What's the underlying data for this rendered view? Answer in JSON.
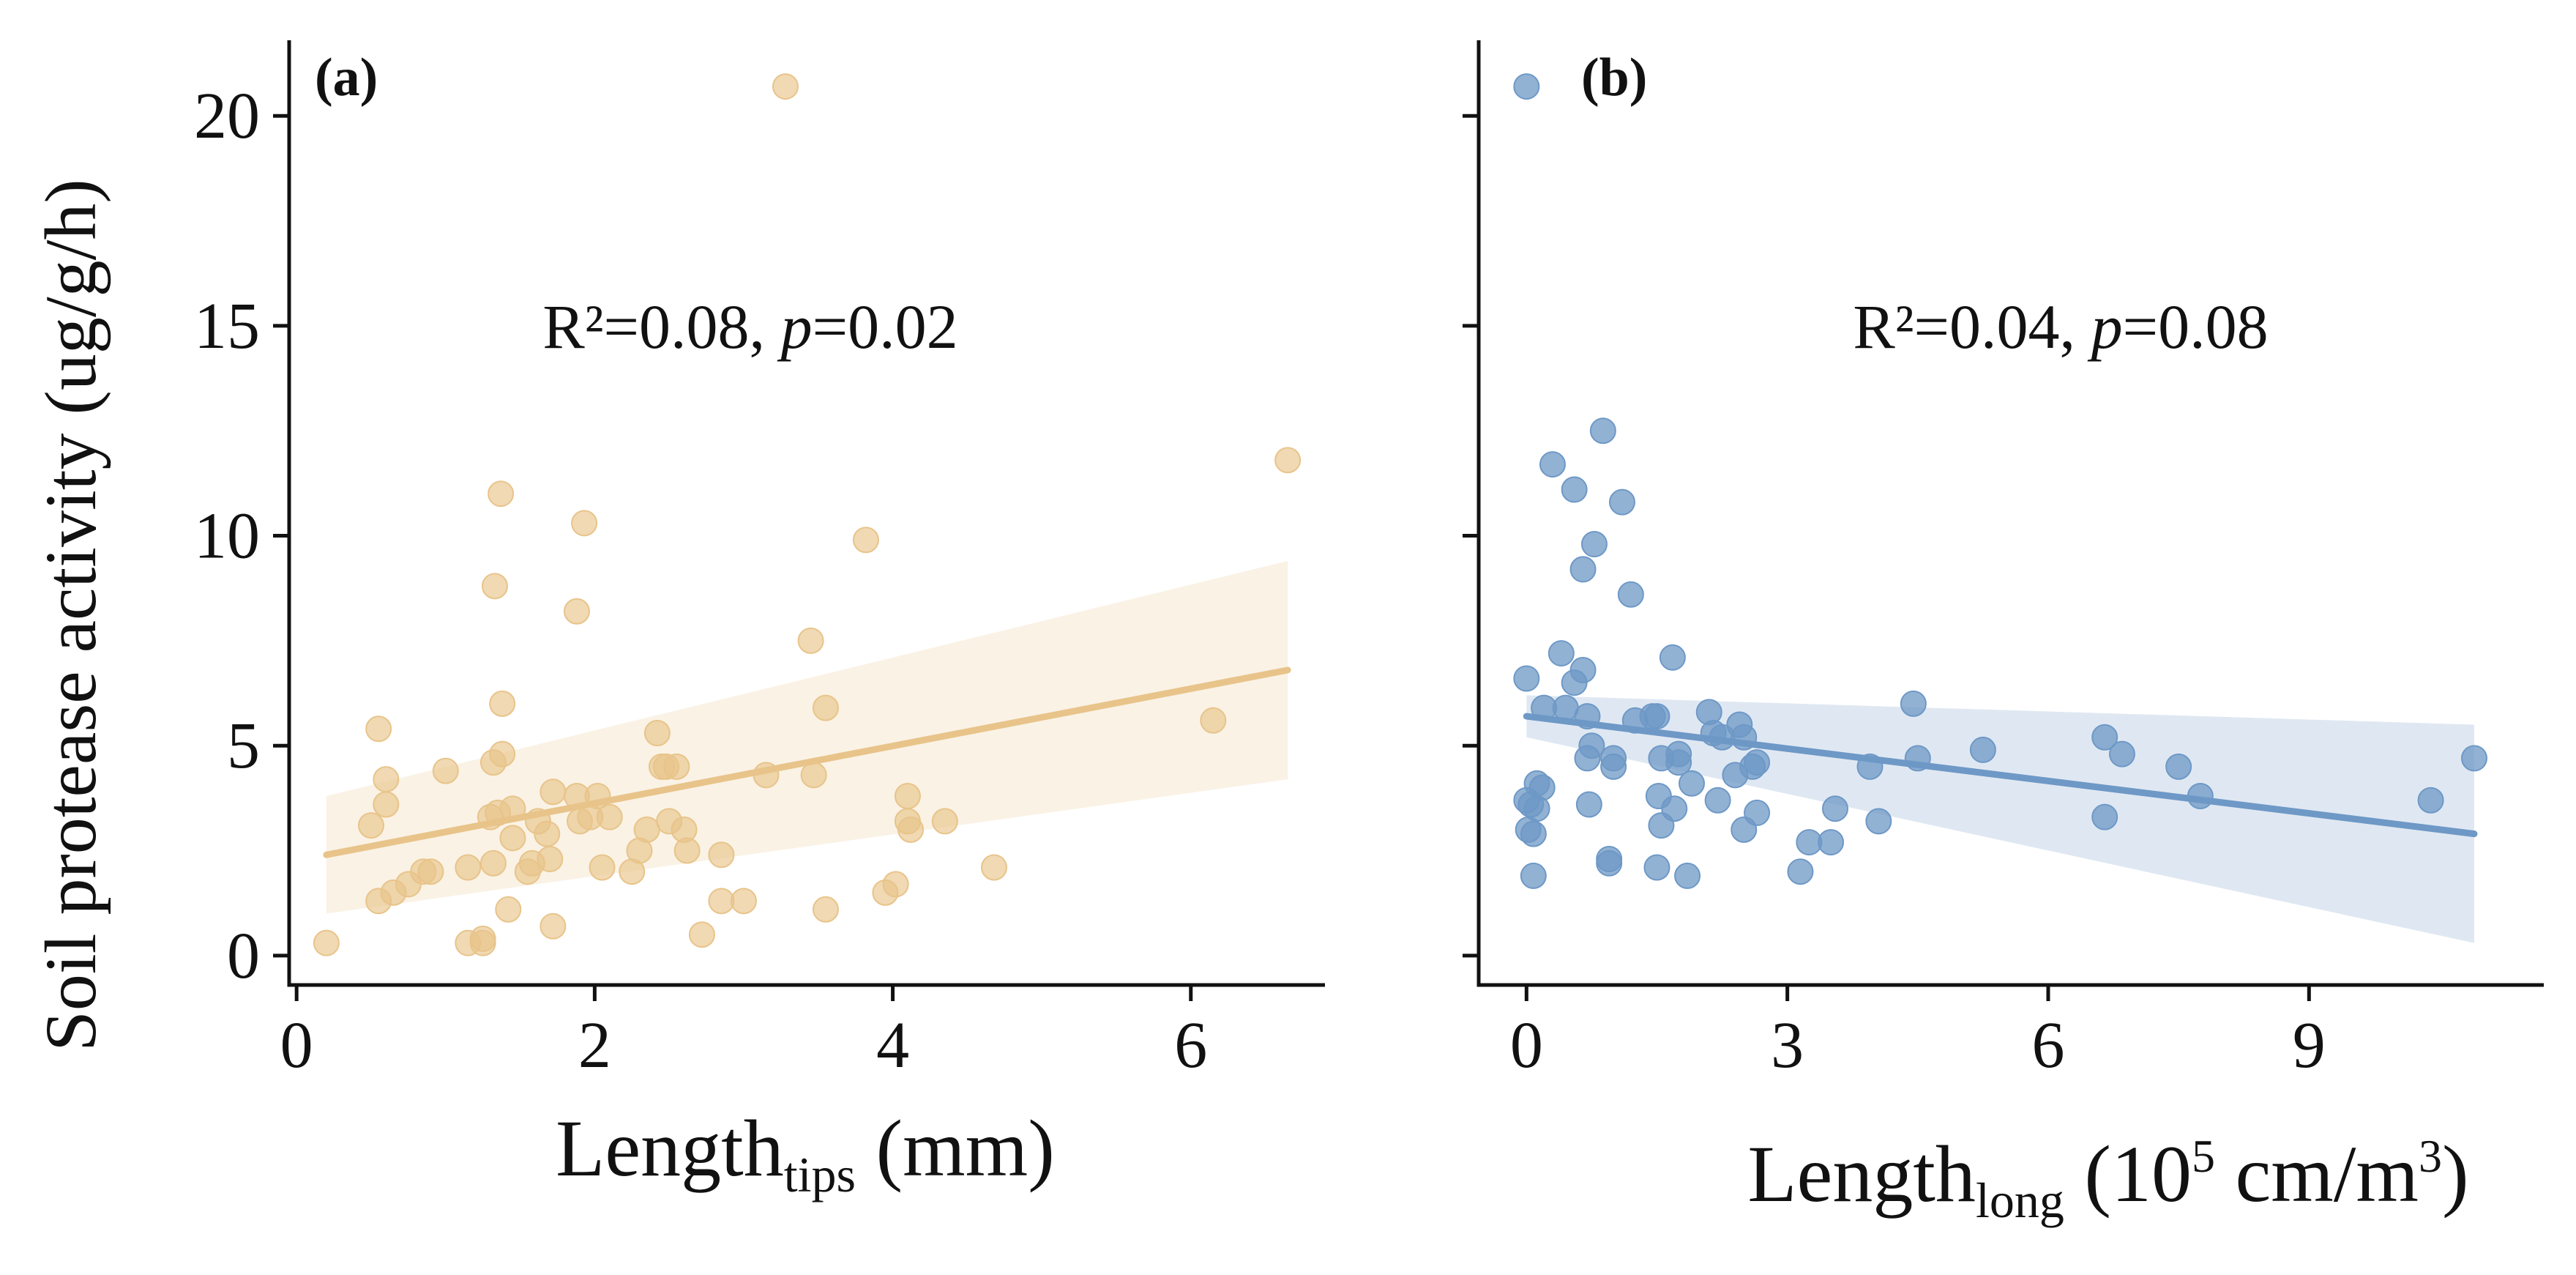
{
  "ylabel": "Soil protease activity (ug/g/h)",
  "chart_data": [
    {
      "type": "scatter",
      "panel_label": "(a)",
      "annotation": {
        "prefix": "R²=0.08, ",
        "p_symbol": "p",
        "suffix": "=0.02"
      },
      "xlabel": {
        "main": "Length",
        "subscript": "tips",
        "rest": " (mm)"
      },
      "ylabel": "Soil protease activity (ug/g/h)",
      "xlim": [
        -0.05,
        6.9
      ],
      "ylim": [
        -0.7,
        21.8
      ],
      "xticks": [
        0,
        2,
        4,
        6
      ],
      "yticks": [
        0,
        5,
        10,
        15,
        20
      ],
      "show_ytick_labels": true,
      "color": "#E8C48A",
      "regression": {
        "x_start": 0.2,
        "x_end": 6.65,
        "y_start": 2.4,
        "y_end": 6.8
      },
      "confidence_band": {
        "x": [
          0.2,
          6.65
        ],
        "upper": [
          3.8,
          9.4
        ],
        "lower": [
          1.0,
          4.2
        ]
      },
      "points": [
        [
          0.2,
          0.3
        ],
        [
          0.5,
          3.1
        ],
        [
          0.55,
          5.4
        ],
        [
          0.55,
          1.3
        ],
        [
          0.6,
          4.2
        ],
        [
          0.6,
          3.6
        ],
        [
          0.65,
          1.5
        ],
        [
          0.75,
          1.7
        ],
        [
          0.85,
          2.0
        ],
        [
          0.9,
          2.0
        ],
        [
          1.0,
          4.4
        ],
        [
          1.15,
          0.3
        ],
        [
          1.15,
          2.1
        ],
        [
          1.25,
          0.4
        ],
        [
          1.25,
          0.3
        ],
        [
          1.3,
          3.3
        ],
        [
          1.32,
          4.6
        ],
        [
          1.32,
          2.2
        ],
        [
          1.33,
          8.8
        ],
        [
          1.35,
          3.4
        ],
        [
          1.37,
          11.0
        ],
        [
          1.38,
          6.0
        ],
        [
          1.38,
          4.8
        ],
        [
          1.42,
          1.1
        ],
        [
          1.45,
          3.5
        ],
        [
          1.45,
          2.8
        ],
        [
          1.55,
          2.0
        ],
        [
          1.58,
          2.2
        ],
        [
          1.62,
          3.2
        ],
        [
          1.68,
          2.9
        ],
        [
          1.7,
          2.3
        ],
        [
          1.72,
          3.9
        ],
        [
          1.72,
          0.7
        ],
        [
          1.88,
          8.2
        ],
        [
          1.88,
          3.8
        ],
        [
          1.9,
          3.2
        ],
        [
          1.93,
          10.3
        ],
        [
          1.97,
          3.3
        ],
        [
          2.02,
          3.8
        ],
        [
          2.05,
          2.1
        ],
        [
          2.1,
          3.3
        ],
        [
          2.25,
          2.0
        ],
        [
          2.3,
          2.5
        ],
        [
          2.35,
          3.0
        ],
        [
          2.42,
          5.3
        ],
        [
          2.45,
          4.5
        ],
        [
          2.48,
          4.5
        ],
        [
          2.5,
          3.2
        ],
        [
          2.55,
          4.5
        ],
        [
          2.6,
          3.0
        ],
        [
          2.62,
          2.5
        ],
        [
          2.72,
          0.5
        ],
        [
          2.85,
          2.4
        ],
        [
          2.85,
          1.3
        ],
        [
          3.0,
          1.3
        ],
        [
          3.15,
          4.3
        ],
        [
          3.28,
          20.7
        ],
        [
          3.45,
          7.5
        ],
        [
          3.47,
          4.3
        ],
        [
          3.55,
          5.9
        ],
        [
          3.55,
          1.1
        ],
        [
          3.82,
          9.9
        ],
        [
          3.95,
          1.5
        ],
        [
          4.02,
          1.7
        ],
        [
          4.1,
          3.8
        ],
        [
          4.1,
          3.2
        ],
        [
          4.12,
          3.0
        ],
        [
          4.35,
          3.2
        ],
        [
          4.68,
          2.1
        ],
        [
          6.15,
          5.6
        ],
        [
          6.65,
          11.8
        ]
      ]
    },
    {
      "type": "scatter",
      "panel_label": "(b)",
      "annotation": {
        "prefix": "R²=0.04, ",
        "p_symbol": "p",
        "suffix": "=0.08"
      },
      "xlabel": {
        "main": "Length",
        "subscript": "long",
        "rest": " (10",
        "superscript": "5",
        "rest2": " cm/m",
        "superscript2": "3",
        "rest3": ")"
      },
      "xlim": [
        -0.55,
        11.7
      ],
      "ylim": [
        -0.7,
        21.8
      ],
      "xticks": [
        0,
        3,
        6,
        9
      ],
      "yticks": [
        0,
        5,
        10,
        15,
        20
      ],
      "show_ytick_labels": false,
      "color": "#6E98C6",
      "regression": {
        "x_start": 0.0,
        "x_end": 10.9,
        "y_start": 5.7,
        "y_end": 2.9
      },
      "confidence_band": {
        "x": [
          0.0,
          10.9
        ],
        "upper": [
          6.2,
          5.5
        ],
        "lower": [
          5.2,
          0.3
        ]
      },
      "points": [
        [
          0.0,
          20.7
        ],
        [
          0.0,
          6.6
        ],
        [
          0.0,
          3.7
        ],
        [
          0.02,
          3.0
        ],
        [
          0.05,
          3.6
        ],
        [
          0.08,
          1.9
        ],
        [
          0.08,
          2.9
        ],
        [
          0.12,
          3.5
        ],
        [
          0.12,
          4.1
        ],
        [
          0.18,
          4.0
        ],
        [
          0.2,
          5.9
        ],
        [
          0.3,
          11.7
        ],
        [
          0.4,
          7.2
        ],
        [
          0.45,
          5.9
        ],
        [
          0.55,
          11.1
        ],
        [
          0.55,
          6.5
        ],
        [
          0.65,
          6.8
        ],
        [
          0.65,
          9.2
        ],
        [
          0.7,
          5.7
        ],
        [
          0.7,
          4.7
        ],
        [
          0.72,
          3.6
        ],
        [
          0.75,
          5.0
        ],
        [
          0.78,
          9.8
        ],
        [
          0.88,
          12.5
        ],
        [
          0.95,
          2.3
        ],
        [
          0.95,
          2.2
        ],
        [
          1.0,
          4.5
        ],
        [
          1.0,
          4.7
        ],
        [
          1.1,
          10.8
        ],
        [
          1.2,
          8.6
        ],
        [
          1.25,
          5.6
        ],
        [
          1.45,
          5.7
        ],
        [
          1.5,
          5.7
        ],
        [
          1.5,
          2.1
        ],
        [
          1.52,
          3.8
        ],
        [
          1.55,
          3.1
        ],
        [
          1.55,
          4.7
        ],
        [
          1.68,
          7.1
        ],
        [
          1.7,
          3.5
        ],
        [
          1.75,
          4.8
        ],
        [
          1.75,
          4.6
        ],
        [
          1.85,
          1.9
        ],
        [
          1.9,
          4.1
        ],
        [
          2.1,
          5.8
        ],
        [
          2.15,
          5.3
        ],
        [
          2.2,
          3.7
        ],
        [
          2.25,
          5.2
        ],
        [
          2.4,
          4.3
        ],
        [
          2.45,
          5.5
        ],
        [
          2.5,
          5.2
        ],
        [
          2.5,
          3.0
        ],
        [
          2.6,
          4.5
        ],
        [
          2.65,
          3.4
        ],
        [
          2.65,
          4.6
        ],
        [
          3.15,
          2.0
        ],
        [
          3.25,
          2.7
        ],
        [
          3.5,
          2.7
        ],
        [
          3.55,
          3.5
        ],
        [
          3.95,
          4.5
        ],
        [
          4.05,
          3.2
        ],
        [
          4.45,
          6.0
        ],
        [
          4.5,
          4.7
        ],
        [
          5.25,
          4.9
        ],
        [
          6.65,
          3.3
        ],
        [
          6.65,
          5.2
        ],
        [
          6.85,
          4.8
        ],
        [
          7.5,
          4.5
        ],
        [
          7.75,
          3.8
        ],
        [
          10.4,
          3.7
        ],
        [
          10.9,
          4.7
        ]
      ]
    }
  ]
}
